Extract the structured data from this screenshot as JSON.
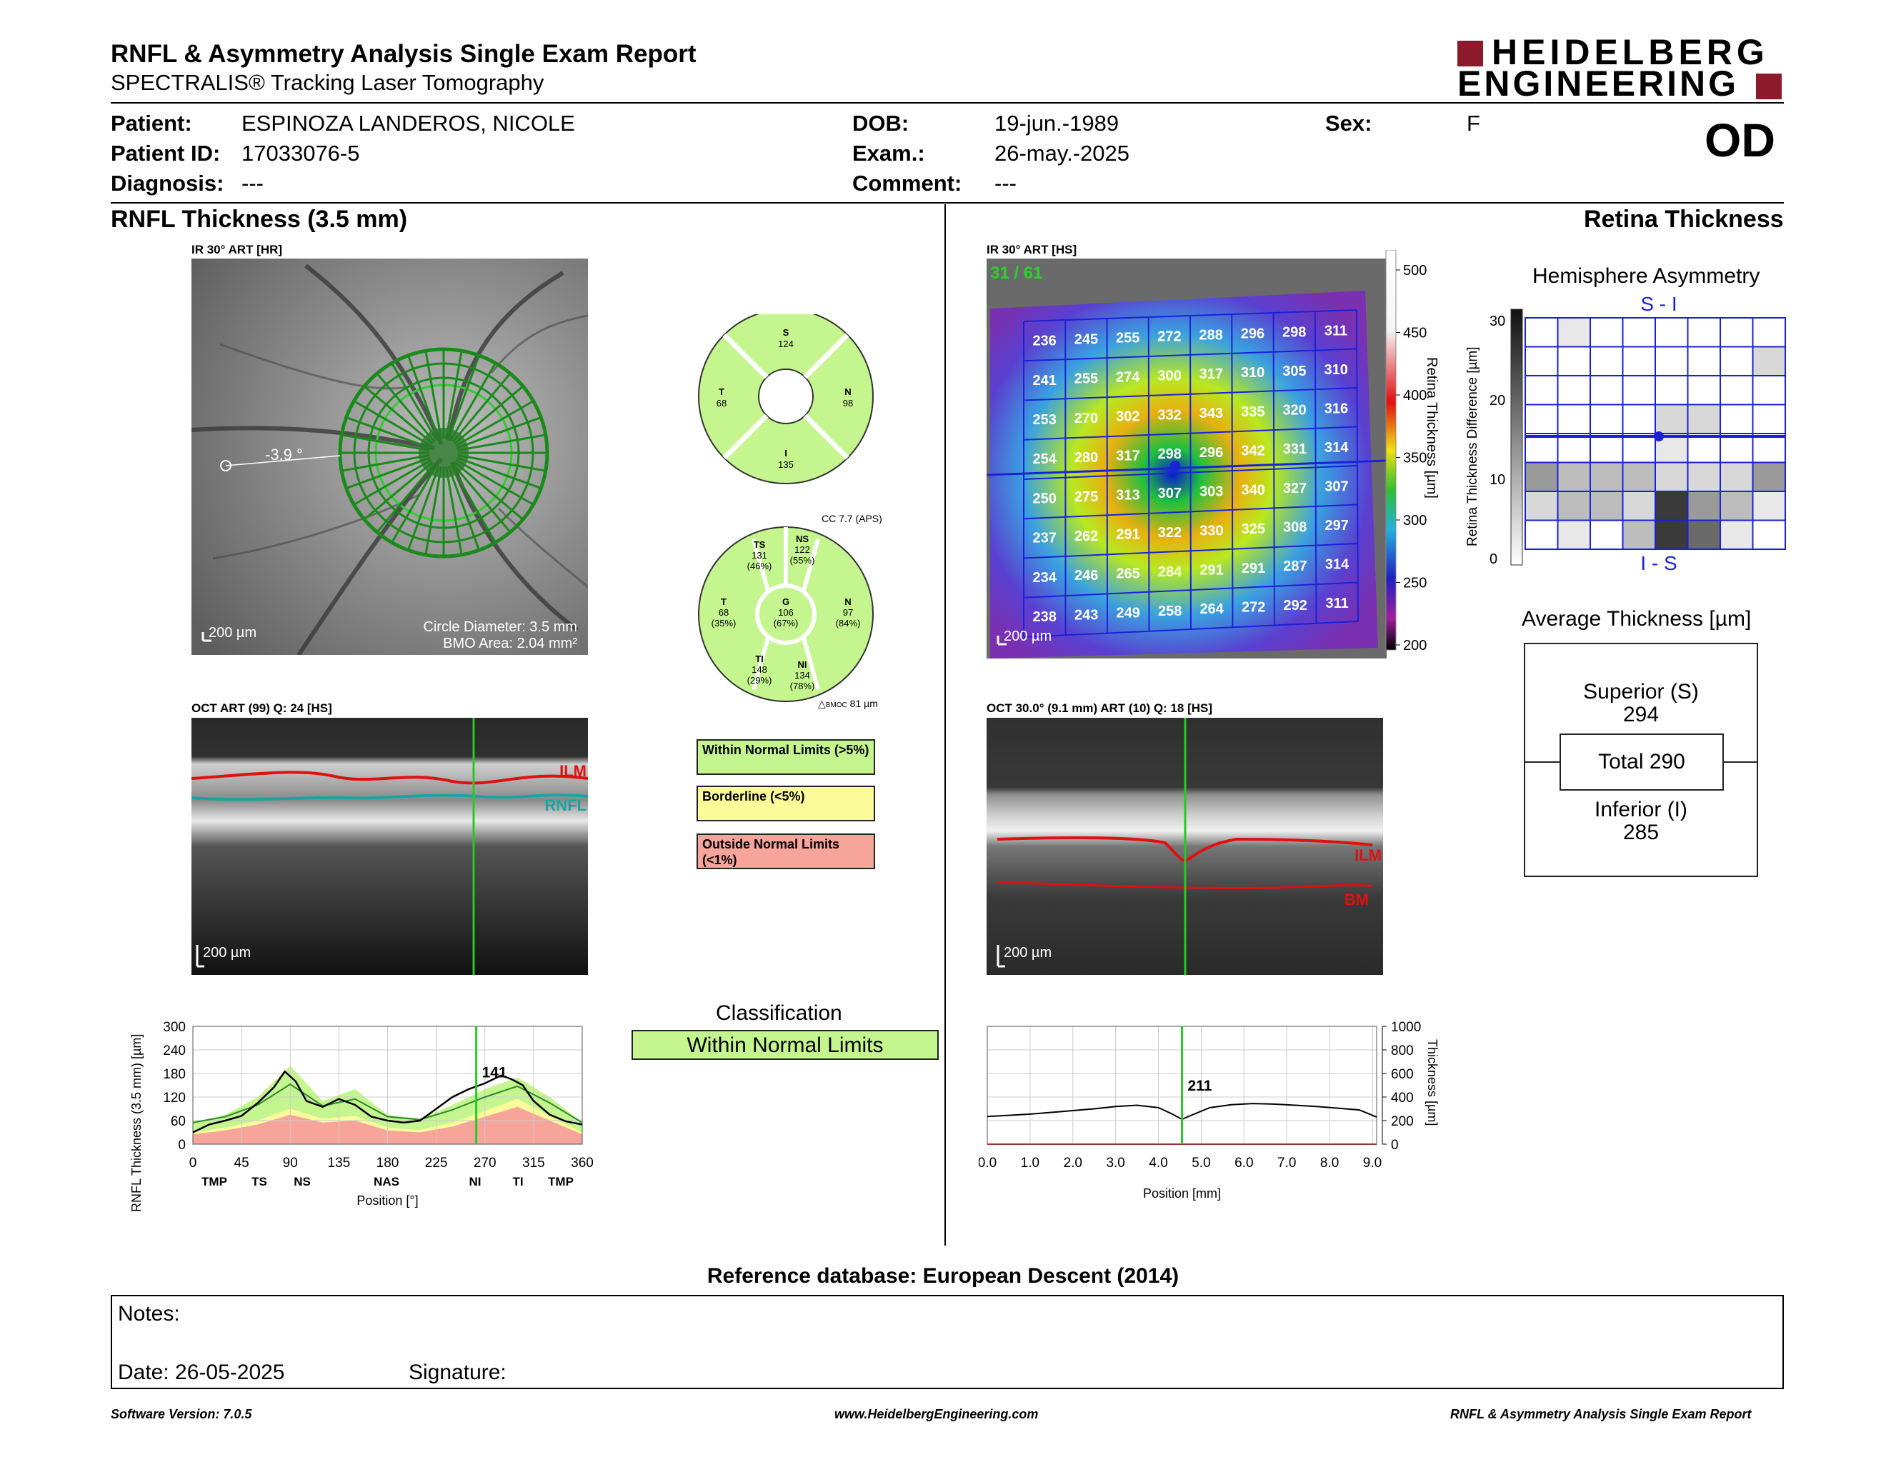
{
  "header": {
    "title": "RNFL & Asymmetry Analysis Single Exam Report",
    "subtitle": "SPECTRALIS® Tracking Laser Tomography",
    "logo_line1": "HEIDELBERG",
    "logo_line2": "ENGINEERING",
    "eye": "OD"
  },
  "patient": {
    "patient_label": "Patient:",
    "patient": "ESPINOZA LANDEROS, NICOLE",
    "id_label": "Patient ID:",
    "id": "17033076-5",
    "diagnosis_label": "Diagnosis:",
    "diagnosis": "---",
    "dob_label": "DOB:",
    "dob": "19-jun.-1989",
    "exam_label": "Exam.:",
    "exam": "26-may.-2025",
    "comment_label": "Comment:",
    "comment": "---",
    "sex_label": "Sex:",
    "sex": "F"
  },
  "rnfl": {
    "section_title": "RNFL Thickness (3.5 mm)",
    "ir_label": "IR 30° ART [HR]",
    "angle": "-3.9 °",
    "scale": "200 µm",
    "circle_diameter": "Circle Diameter: 3.5 mm",
    "bmo_area": "BMO Area: 2.04 mm²",
    "quad": {
      "S": "124",
      "T": "68",
      "N": "98",
      "I": "135"
    },
    "cc": "CC 7.7 (APS)",
    "sectors": {
      "TS": {
        "name": "TS",
        "value": "131",
        "pct": "(46%)"
      },
      "NS": {
        "name": "NS",
        "value": "122",
        "pct": "(55%)"
      },
      "T": {
        "name": "T",
        "value": "68",
        "pct": "(35%)"
      },
      "G": {
        "name": "G",
        "value": "106",
        "pct": "(67%)"
      },
      "N": {
        "name": "N",
        "value": "97",
        "pct": "(84%)"
      },
      "TI": {
        "name": "TI",
        "value": "148",
        "pct": "(29%)"
      },
      "NI": {
        "name": "NI",
        "value": "134",
        "pct": "(78%)"
      }
    },
    "bmoc": "81 µm",
    "bmoc_label": "BMOC",
    "oct_label": "OCT ART (99) Q: 24 [HS]",
    "ilm": "ILM",
    "rnfl_tag": "RNFL",
    "legend": {
      "within": "Within Normal Limits (>5%)",
      "borderline": "Borderline (<5%)",
      "outside": "Outside Normal Limits (<1%)"
    },
    "classification_title": "Classification",
    "classification": "Within Normal Limits"
  },
  "rnfl_chart": {
    "ylabel": "RNFL Thickness (3.5 mm) [µm]",
    "xlabel": "Position [°]",
    "marker_value": "141",
    "sector_labels": [
      "TMP",
      "TS",
      "NS",
      "NAS",
      "NI",
      "TI",
      "TMP"
    ]
  },
  "retina": {
    "section_title": "Retina Thickness",
    "ir_label": "IR 30° ART [HS]",
    "counter": "31 / 61",
    "scale": "200 µm",
    "colorbar_label": "Retina Thickness [µm]",
    "colorbar_ticks": [
      "500",
      "450",
      "400",
      "350",
      "300",
      "250",
      "200"
    ],
    "grid": [
      [
        236,
        245,
        255,
        272,
        288,
        296,
        298,
        311
      ],
      [
        241,
        255,
        274,
        300,
        317,
        310,
        305,
        310
      ],
      [
        253,
        270,
        302,
        332,
        343,
        335,
        320,
        316
      ],
      [
        254,
        280,
        317,
        298,
        296,
        342,
        331,
        314
      ],
      [
        250,
        275,
        313,
        307,
        303,
        340,
        327,
        307
      ],
      [
        237,
        262,
        291,
        322,
        330,
        325,
        308,
        297
      ],
      [
        234,
        246,
        265,
        284,
        291,
        291,
        287,
        314
      ],
      [
        238,
        243,
        249,
        258,
        264,
        272,
        292,
        311
      ]
    ],
    "oct_label": "OCT 30.0° (9.1 mm) ART (10) Q: 18 [HS]",
    "ilm": "ILM",
    "bm": "BM"
  },
  "asymmetry": {
    "title": "Hemisphere Asymmetry",
    "top": "S - I",
    "bottom": "I - S",
    "ylabel": "Retina Thickness Difference [µm]",
    "yticks": [
      "30",
      "20",
      "10",
      "0"
    ],
    "upper_cells": [
      [
        0,
        1,
        0,
        0,
        0,
        0,
        0,
        0
      ],
      [
        0,
        0,
        0,
        0,
        0,
        0,
        0,
        2
      ],
      [
        0,
        0,
        0,
        0,
        0,
        0,
        0,
        0
      ],
      [
        0,
        0,
        0,
        0,
        2,
        2,
        0,
        0
      ]
    ],
    "lower_cells": [
      [
        0,
        0,
        0,
        0,
        1,
        0,
        0,
        0
      ],
      [
        4,
        3,
        3,
        3,
        2,
        2,
        2,
        4
      ],
      [
        2,
        3,
        3,
        2,
        6,
        4,
        3,
        1
      ],
      [
        0,
        1,
        0,
        3,
        6,
        5,
        1,
        0
      ]
    ]
  },
  "average": {
    "title": "Average Thickness [µm]",
    "superior_label": "Superior (S)",
    "superior": "294",
    "total_label": "Total 290",
    "inferior_label": "Inferior (I)",
    "inferior": "285"
  },
  "retina_chart": {
    "ylabel": "Thickness [µm]",
    "xlabel": "Position [mm]",
    "yticks": [
      "1000",
      "800",
      "600",
      "400",
      "200",
      "0"
    ],
    "xticks": [
      "0.0",
      "1.0",
      "2.0",
      "3.0",
      "4.0",
      "5.0",
      "6.0",
      "7.0",
      "8.0",
      "9.0"
    ],
    "marker_value": "211"
  },
  "chart_data": [
    {
      "type": "line",
      "title": "",
      "xlabel": "Position [°]",
      "ylabel": "RNFL Thickness (3.5 mm) [µm]",
      "xlim": [
        0,
        360
      ],
      "ylim": [
        0,
        300
      ],
      "xticks": [
        0,
        45,
        90,
        135,
        180,
        225,
        270,
        315,
        360
      ],
      "yticks": [
        0,
        60,
        120,
        180,
        240,
        300
      ],
      "x": [
        0,
        15,
        30,
        45,
        60,
        75,
        85,
        95,
        105,
        120,
        135,
        150,
        165,
        180,
        195,
        210,
        225,
        240,
        255,
        270,
        285,
        295,
        305,
        315,
        330,
        345,
        360
      ],
      "series": [
        {
          "values": [
            30,
            50,
            60,
            72,
            105,
            145,
            185,
            160,
            110,
            95,
            115,
            100,
            70,
            60,
            55,
            60,
            90,
            120,
            140,
            155,
            175,
            165,
            150,
            110,
            75,
            58,
            50
          ]
        }
      ],
      "marker": {
        "x": 262,
        "label": "141"
      }
    },
    {
      "type": "line",
      "title": "",
      "xlabel": "Position [mm]",
      "ylabel": "Thickness [µm]",
      "xlim": [
        0,
        9.1
      ],
      "ylim": [
        0,
        1000
      ],
      "xticks": [
        0,
        1,
        2,
        3,
        4,
        5,
        6,
        7,
        8,
        9
      ],
      "yticks": [
        0,
        200,
        400,
        600,
        800,
        1000
      ],
      "x": [
        0,
        0.5,
        1,
        1.5,
        2,
        2.5,
        3,
        3.5,
        4,
        4.3,
        4.55,
        4.8,
        5.2,
        5.7,
        6.2,
        6.7,
        7.2,
        7.7,
        8.2,
        8.7,
        9.1
      ],
      "series": [
        {
          "values": [
            235,
            245,
            255,
            270,
            285,
            300,
            320,
            330,
            310,
            260,
            211,
            250,
            310,
            335,
            345,
            340,
            330,
            320,
            305,
            290,
            230
          ]
        }
      ],
      "marker": {
        "x": 4.55,
        "label": "211"
      }
    }
  ],
  "footer": {
    "reference": "Reference database: European Descent (2014)",
    "notes_label": "Notes:",
    "date_label": "Date: 26-05-2025",
    "signature_label": "Signature:",
    "software": "Software Version: 7.0.5",
    "website": "www.HeidelbergEngineering.com",
    "report_name": "RNFL & Asymmetry Analysis Single Exam Report"
  },
  "colors": {
    "normal": "#c5f58f",
    "borderline": "#fbfb9a",
    "outside": "#f7a49a",
    "grid_blue": "#1a22d6",
    "logo_red": "#8c1a2a"
  }
}
